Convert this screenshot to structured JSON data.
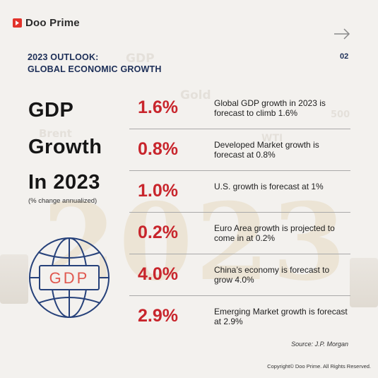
{
  "brand": {
    "name": "Doo Prime"
  },
  "page_number": "02",
  "heading": {
    "line1": "2023 OUTLOOK:",
    "line2": "GLOBAL ECONOMIC GROWTH"
  },
  "title": {
    "line1": "GDP",
    "line2": "Growth",
    "line3": "In 2023"
  },
  "subtitle": "(% change annualized)",
  "globe_label": "GDP",
  "rows": [
    {
      "value": "1.6%",
      "text": "Global GDP growth in 2023 is forecast to climb 1.6%"
    },
    {
      "value": "0.8%",
      "text": "Developed Market growth is forecast at 0.8%"
    },
    {
      "value": "1.0%",
      "text": "U.S. growth is forecast at 1%"
    },
    {
      "value": "0.2%",
      "text": "Euro Area growth is projected to come in at 0.2%"
    },
    {
      "value": "4.0%",
      "text": "China’s economy is forecast to grow 4.0%"
    },
    {
      "value": "2.9%",
      "text": "Emerging Market growth is forecast at 2.9%"
    }
  ],
  "source": "Source: J.P. Morgan",
  "copyright": "Copyright© Doo Prime. All Rights Reserved.",
  "background_words": {
    "gdp": "GDP",
    "gold": "Gold",
    "brent": "Brent",
    "wti": "WTI",
    "num": "500",
    "year": "2023"
  },
  "colors": {
    "accent_red": "#c8252c",
    "navy": "#1c2e57",
    "logo_red": "#e2332b"
  }
}
